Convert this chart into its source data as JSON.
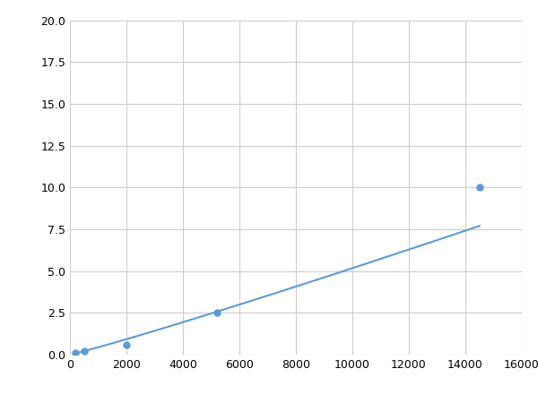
{
  "x": [
    200,
    500,
    2000,
    5200,
    14500
  ],
  "y": [
    0.1,
    0.2,
    0.6,
    2.5,
    10.0
  ],
  "line_color": "#5b9bd5",
  "marker_color": "#5b9bd5",
  "marker_size": 5,
  "line_width": 1.5,
  "xlim": [
    0,
    16000
  ],
  "ylim": [
    0,
    20.0
  ],
  "xticks": [
    0,
    2000,
    4000,
    6000,
    8000,
    10000,
    12000,
    14000,
    16000
  ],
  "yticks": [
    0.0,
    2.5,
    5.0,
    7.5,
    10.0,
    12.5,
    15.0,
    17.5,
    20.0
  ],
  "grid_color": "#cccccc",
  "background_color": "#ffffff",
  "figsize": [
    6.0,
    4.5
  ],
  "dpi": 100
}
